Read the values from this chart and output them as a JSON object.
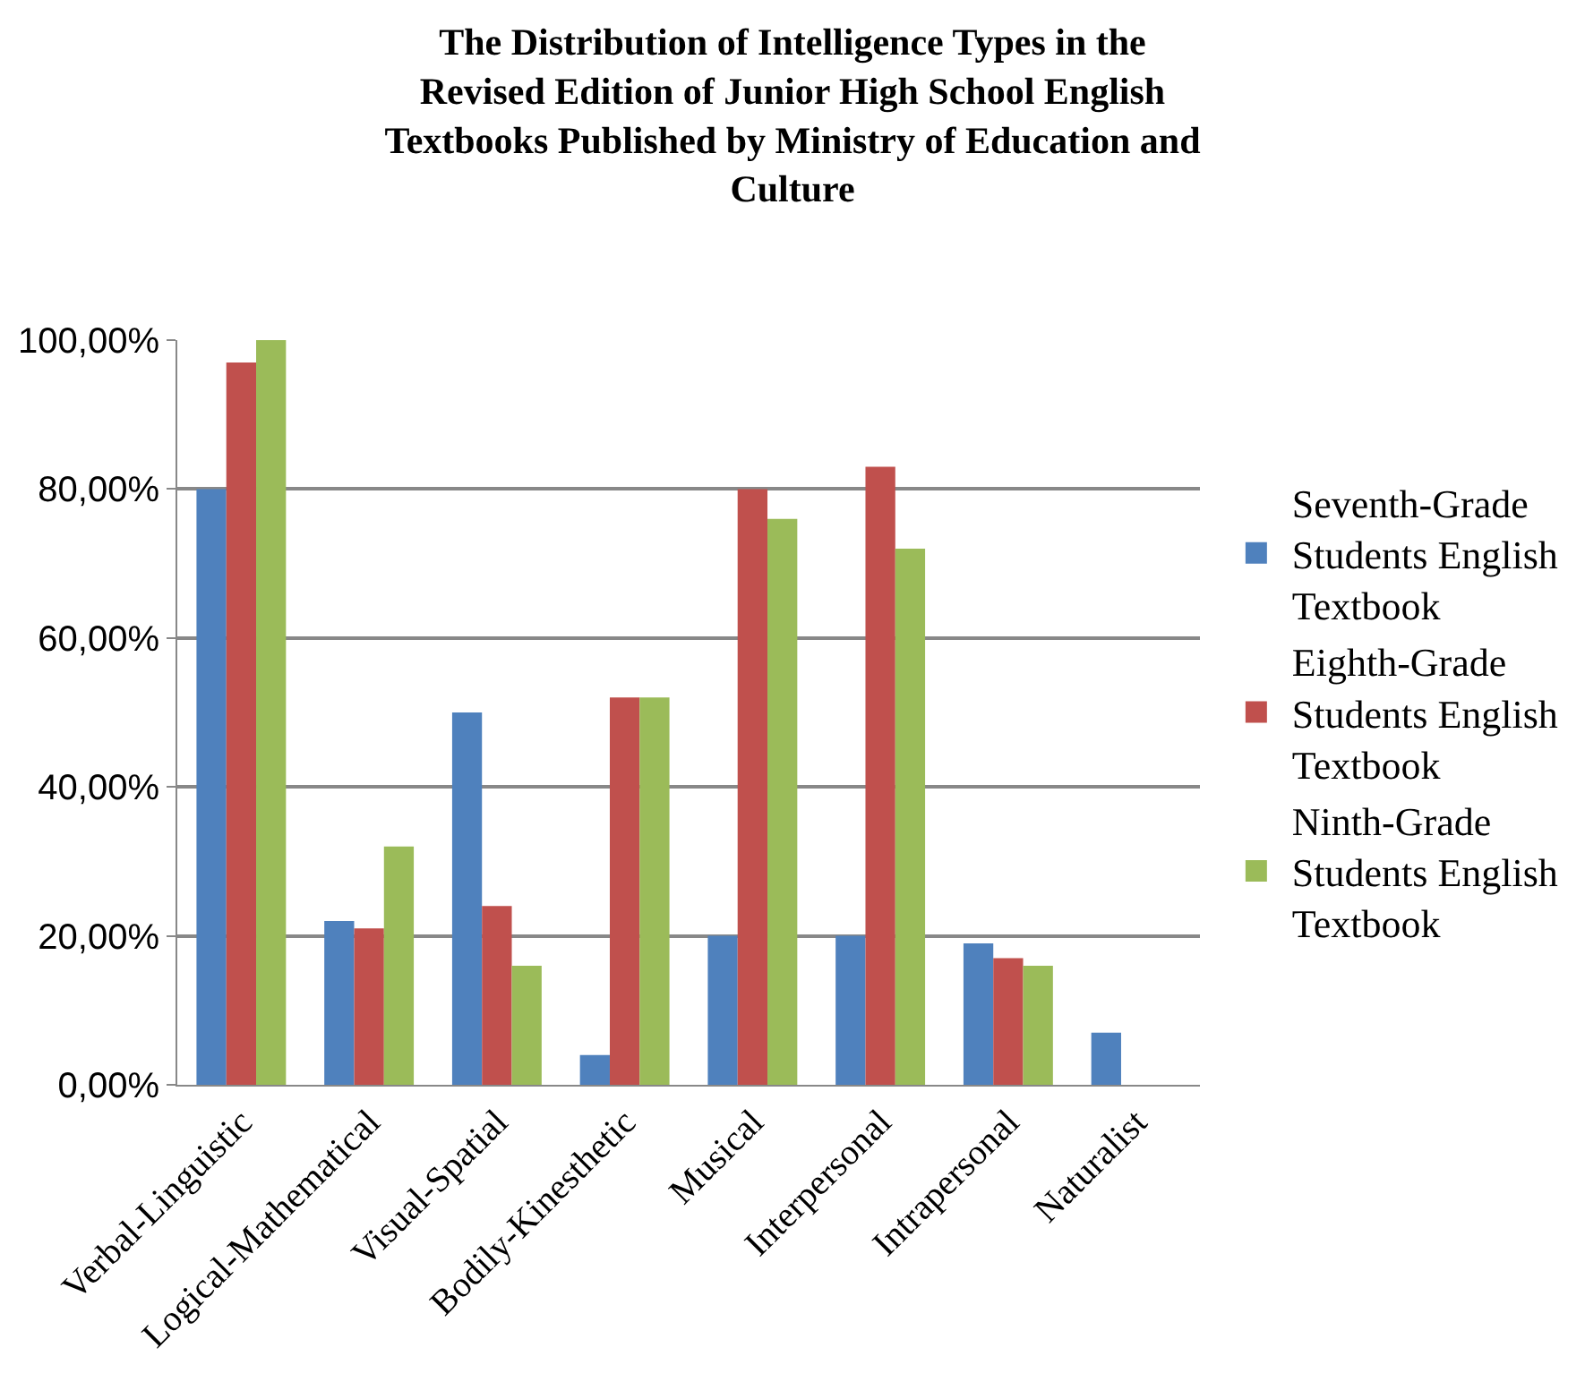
{
  "chart_data": {
    "type": "bar",
    "title": "The Distribution of Intelligence Types in the Revised Edition of Junior High School English Textbooks Published by Ministry of Education and Culture",
    "categories": [
      "Verbal-Linguistic",
      "Logical-Mathematical",
      "Visual-Spatial",
      "Bodily-Kinesthetic",
      "Musical",
      "Interpersonal",
      "Intrapersonal",
      "Naturalist"
    ],
    "series": [
      {
        "name": "Seventh-Grade Students English Textbook",
        "color": "#4f81bd",
        "values": [
          80,
          22,
          50,
          4,
          20,
          20,
          19,
          7
        ]
      },
      {
        "name": "Eighth-Grade Students English Textbook",
        "color": "#c0504d",
        "values": [
          97,
          21,
          24,
          52,
          80,
          83,
          17,
          0
        ]
      },
      {
        "name": "Ninth-Grade Students English Textbook",
        "color": "#9bbb59",
        "values": [
          100,
          32,
          16,
          52,
          76,
          72,
          16,
          0
        ]
      }
    ],
    "ylim": [
      0,
      100
    ],
    "yticks": [
      {
        "value": 0,
        "label": "0,00%"
      },
      {
        "value": 20,
        "label": "20,00%"
      },
      {
        "value": 40,
        "label": "40,00%"
      },
      {
        "value": 60,
        "label": "60,00%"
      },
      {
        "value": 80,
        "label": "80,00%"
      },
      {
        "value": 100,
        "label": "100,00%"
      }
    ],
    "grid": "y",
    "legend": "right"
  }
}
